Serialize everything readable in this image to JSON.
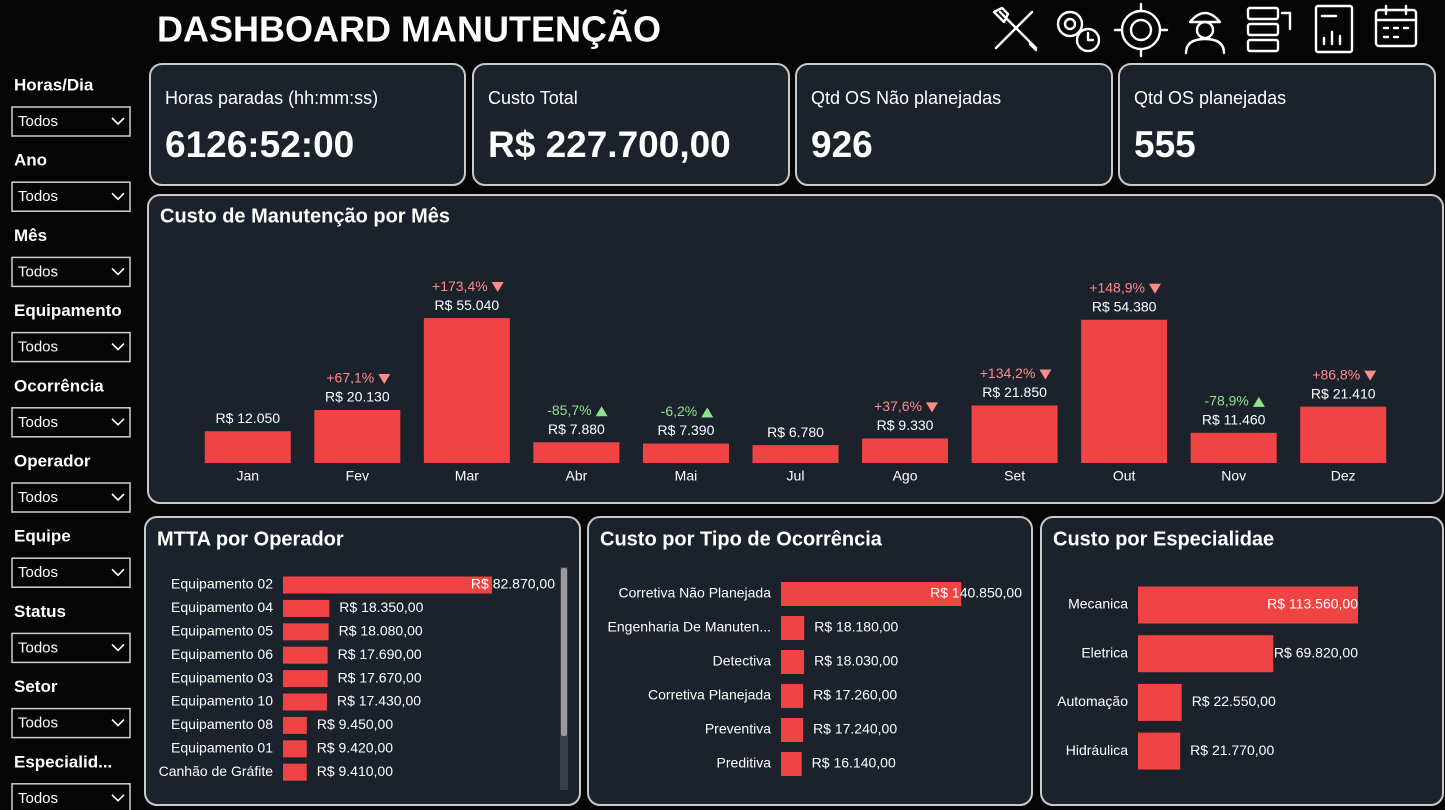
{
  "header": {
    "title": "DASHBOARD MANUTENÇÃO"
  },
  "filters": [
    {
      "label": "Horas/Dia",
      "value": "Todos"
    },
    {
      "label": "Ano",
      "value": "Todos"
    },
    {
      "label": "Mês",
      "value": "Todos"
    },
    {
      "label": "Equipamento",
      "value": "Todos"
    },
    {
      "label": "Ocorrência",
      "value": "Todos"
    },
    {
      "label": "Operador",
      "value": "Todos"
    },
    {
      "label": "Equipe",
      "value": "Todos"
    },
    {
      "label": "Status",
      "value": "Todos"
    },
    {
      "label": "Setor",
      "value": "Todos"
    },
    {
      "label": "Especialid...",
      "value": "Todos"
    }
  ],
  "kpis": [
    {
      "label": "Horas paradas (hh:mm:ss)",
      "value": "6126:52:00"
    },
    {
      "label": "Custo Total",
      "value": "R$ 227.700,00"
    },
    {
      "label": "Qtd OS Não planejadas",
      "value": 926
    },
    {
      "label": "Qtd OS planejadas",
      "value": 555
    }
  ],
  "chart_data": [
    {
      "type": "bar",
      "title": "Custo de Manutenção por Mês",
      "categories": [
        "Jan",
        "Fev",
        "Mar",
        "Abr",
        "Mai",
        "Jul",
        "Ago",
        "Set",
        "Out",
        "Nov",
        "Dez"
      ],
      "values": [
        12050,
        20130,
        55040,
        7880,
        7390,
        6780,
        9330,
        21850,
        54380,
        11460,
        21410
      ],
      "value_labels": [
        "R$ 12.050",
        "R$ 20.130",
        "R$ 55.040",
        "R$ 7.880",
        "R$ 7.390",
        "R$ 6.780",
        "R$ 9.330",
        "R$ 21.850",
        "R$ 54.380",
        "R$ 11.460",
        "R$ 21.410"
      ],
      "changes": [
        null,
        67.1,
        173.4,
        -85.7,
        -6.2,
        null,
        37.6,
        134.2,
        148.9,
        -78.9,
        86.8
      ],
      "change_labels": [
        null,
        "+67,1%",
        "+173,4%",
        "-85,7%",
        "-6,2%",
        null,
        "+37,6%",
        "+134,2%",
        "+148,9%",
        "-78,9%",
        "+86,8%"
      ],
      "color": "#f04343",
      "increase_color": "#ff8a8a",
      "decrease_color": "#8fe38f",
      "ylim": [
        0,
        60000
      ]
    },
    {
      "type": "hbar",
      "title": "MTTA por Operador",
      "categories": [
        "Equipamento 02",
        "Equipamento 04",
        "Equipamento 05",
        "Equipamento 06",
        "Equipamento 03",
        "Equipamento 10",
        "Equipamento 08",
        "Equipamento 01",
        "Canhão de Gráfite"
      ],
      "values": [
        82870,
        18350,
        18080,
        17690,
        17670,
        17430,
        9450,
        9420,
        9410
      ],
      "value_labels": [
        "R$ 82.870,00",
        "R$ 18.350,00",
        "R$ 18.080,00",
        "R$ 17.690,00",
        "R$ 17.670,00",
        "R$ 17.430,00",
        "R$ 9.450,00",
        "R$ 9.420,00",
        "R$ 9.410,00"
      ],
      "color": "#f04343",
      "xlim": [
        0,
        90000
      ]
    },
    {
      "type": "hbar",
      "title": "Custo por Tipo de Ocorrência",
      "categories": [
        "Corretiva Não Planejada",
        "Engenharia De Manuten...",
        "Detectiva",
        "Corretiva Planejada",
        "Preventiva",
        "Preditiva"
      ],
      "values": [
        140850,
        18180,
        18030,
        17260,
        17240,
        16140
      ],
      "value_labels": [
        "R$ 140.850,00",
        "R$ 18.180,00",
        "R$ 18.030,00",
        "R$ 17.260,00",
        "R$ 17.240,00",
        "R$ 16.140,00"
      ],
      "color": "#f04343",
      "xlim": [
        0,
        150000
      ]
    },
    {
      "type": "hbar",
      "title": "Custo por Especialidae",
      "categories": [
        "Mecanica",
        "Eletrica",
        "Automação",
        "Hidráulica"
      ],
      "values": [
        113560,
        69820,
        22550,
        21770
      ],
      "value_labels": [
        "R$ 113.560,00",
        "R$ 69.820,00",
        "R$ 22.550,00",
        "R$ 21.770,00"
      ],
      "color": "#f04343",
      "xlim": [
        0,
        120000
      ]
    }
  ]
}
